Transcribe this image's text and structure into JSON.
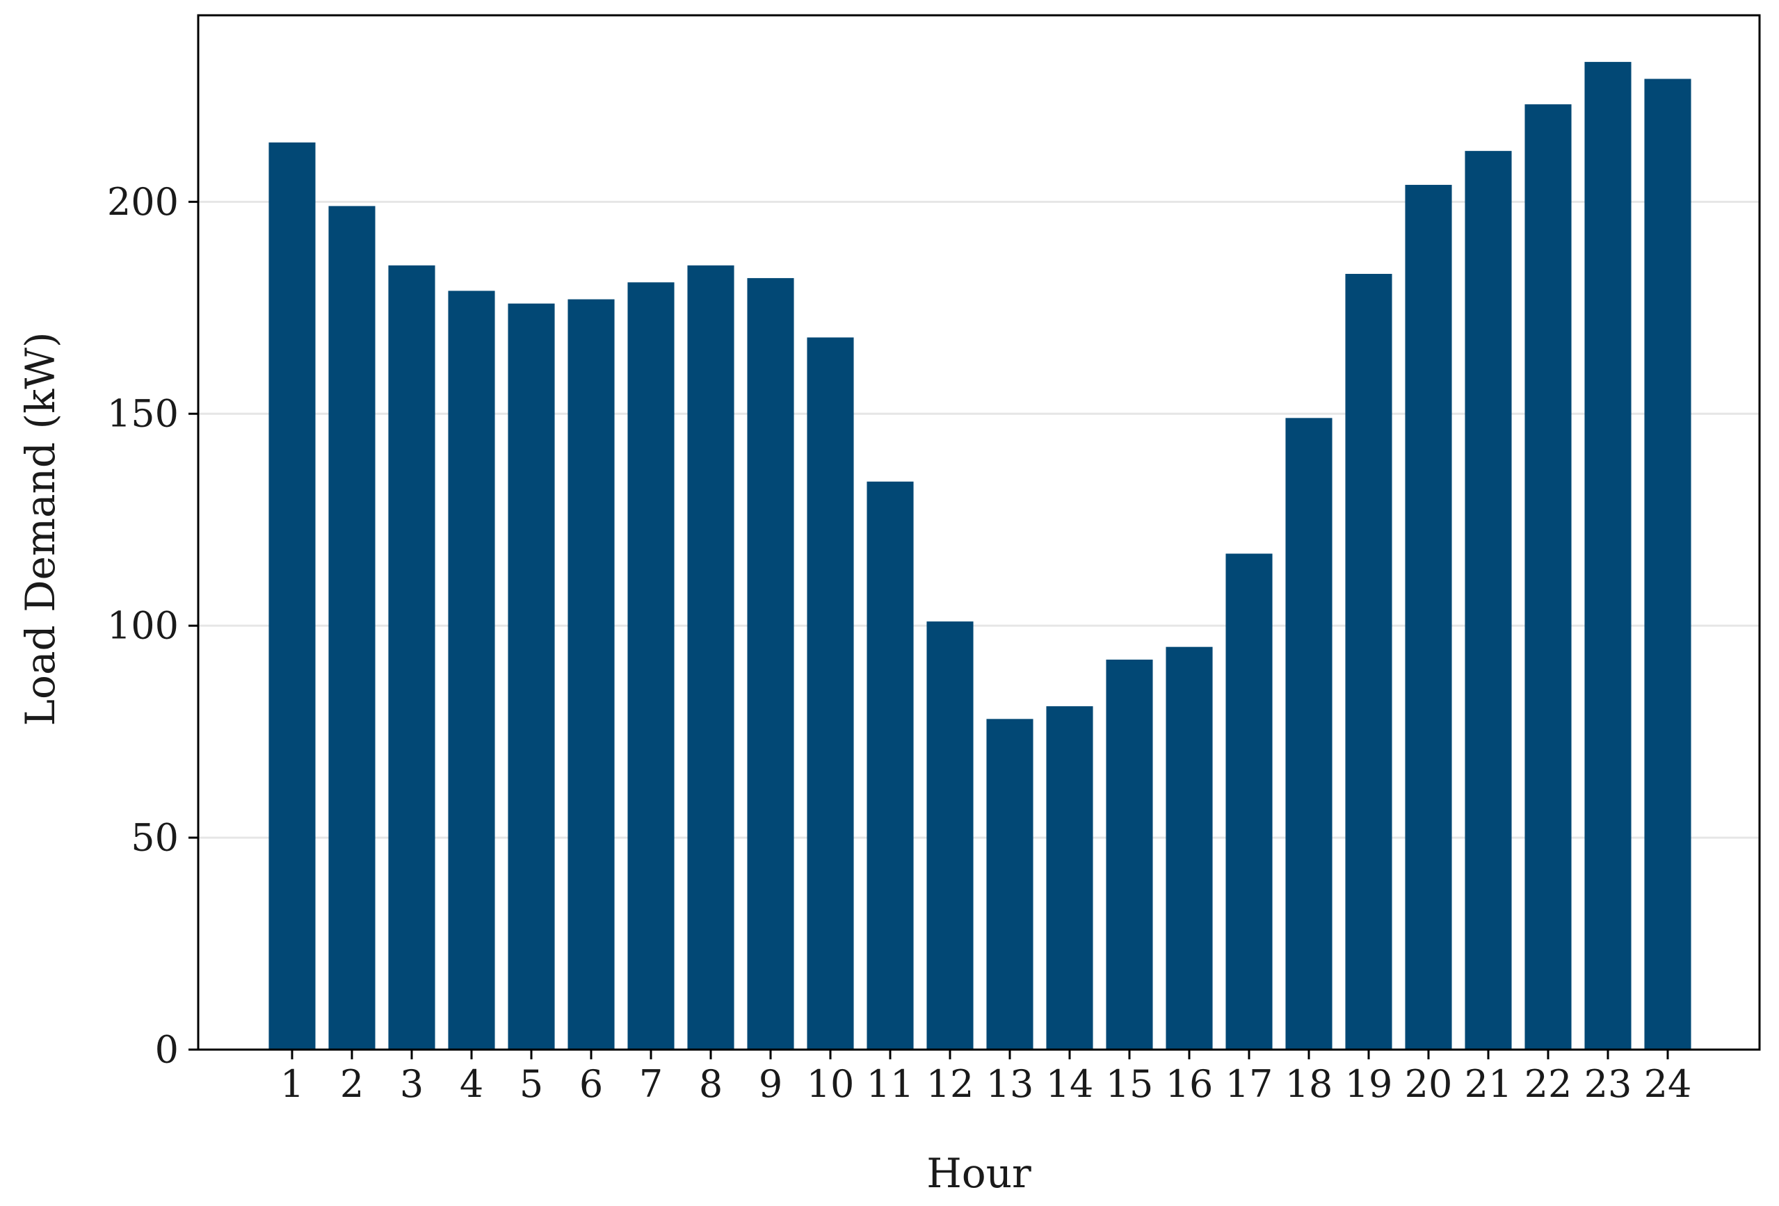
{
  "chart_data": {
    "type": "bar",
    "title": "",
    "xlabel": "Hour",
    "ylabel": "Load Demand (kW)",
    "categories": [
      "1",
      "2",
      "3",
      "4",
      "5",
      "6",
      "7",
      "8",
      "9",
      "10",
      "11",
      "12",
      "13",
      "14",
      "15",
      "16",
      "17",
      "18",
      "19",
      "20",
      "21",
      "22",
      "23",
      "24"
    ],
    "values": [
      214,
      199,
      185,
      179,
      176,
      177,
      181,
      185,
      182,
      168,
      134,
      101,
      78,
      81,
      92,
      95,
      117,
      149,
      183,
      204,
      212,
      223,
      233,
      229
    ],
    "ylim": [
      0,
      244
    ],
    "yticks": [
      0,
      50,
      100,
      150,
      200
    ],
    "grid": "horizontal",
    "legend": "none",
    "bar_color": "#024875",
    "grid_color": "#e6e6e6",
    "axis_color": "#000000"
  }
}
